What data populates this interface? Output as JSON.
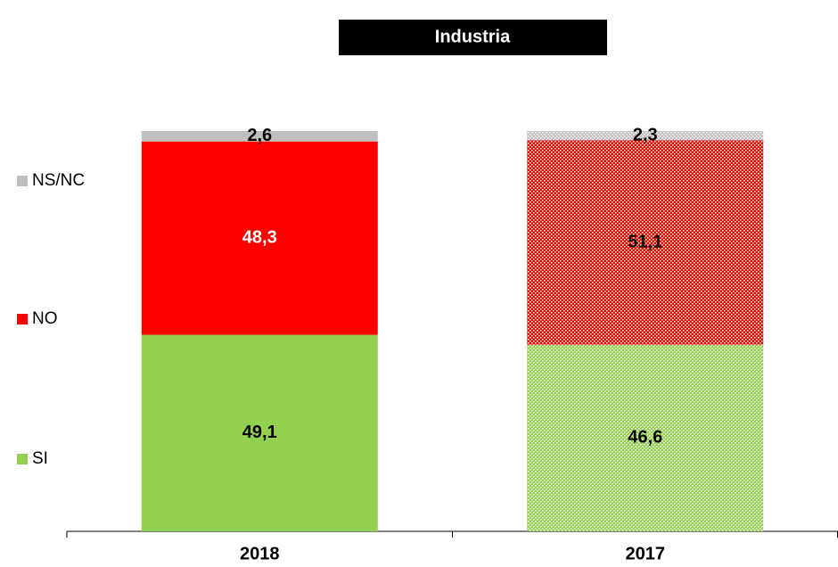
{
  "chart_data": {
    "type": "stacked_bar",
    "title": "Industria",
    "categories": [
      "2018",
      "2017"
    ],
    "pattern": [
      false,
      true
    ],
    "series": [
      {
        "name": "SI",
        "color": "#92d050",
        "values": [
          49.1,
          46.6
        ],
        "value_labels": [
          "49,1",
          "46,6"
        ]
      },
      {
        "name": "NO",
        "color": "#ff0000",
        "label_color": "#ffffff",
        "values": [
          48.3,
          51.1
        ],
        "value_labels": [
          "48,3",
          "51,1"
        ]
      },
      {
        "name": "NS/NC",
        "color": "#bfbfbf",
        "values": [
          2.6,
          2.3
        ],
        "value_labels": [
          "2,6",
          "2,3"
        ]
      }
    ],
    "ylim": [
      0,
      100
    ]
  }
}
